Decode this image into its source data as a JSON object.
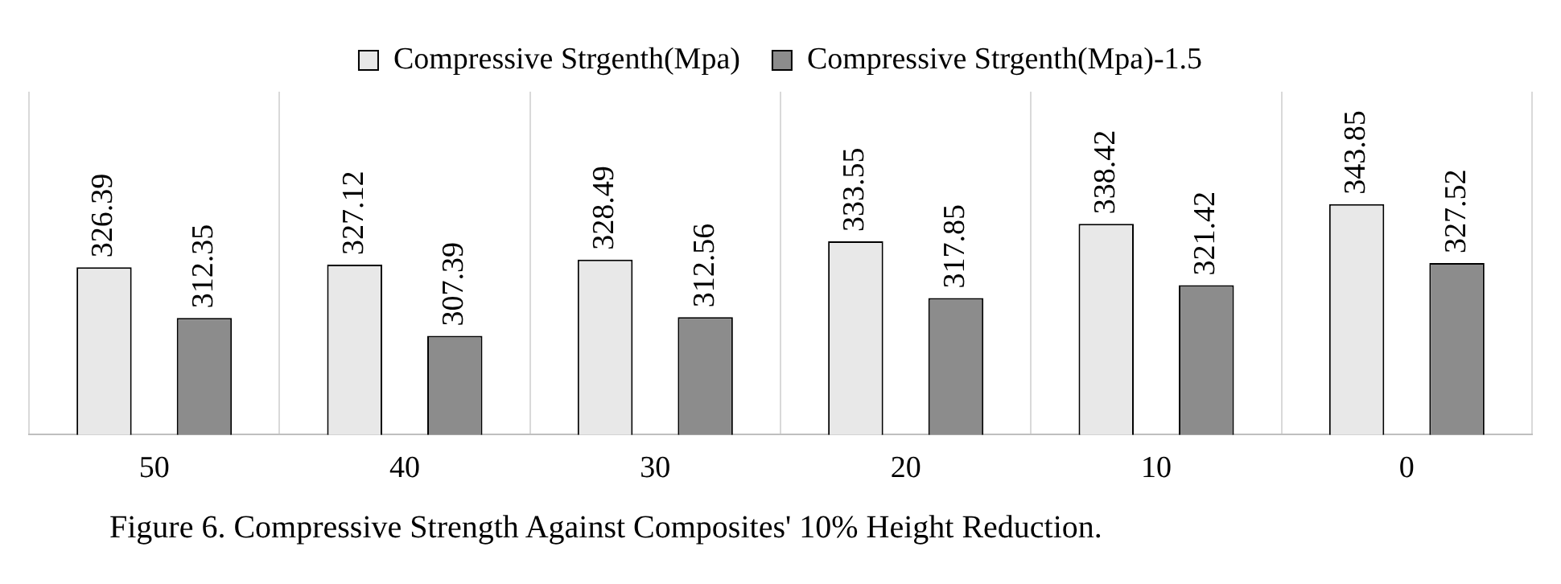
{
  "chart_data": {
    "type": "bar",
    "categories": [
      "50",
      "40",
      "30",
      "20",
      "10",
      "0"
    ],
    "series": [
      {
        "name": "Compressive Strgenth(Mpa)",
        "color": "#e8e8e8",
        "values": [
          326.39,
          327.12,
          328.49,
          333.55,
          338.42,
          343.85
        ]
      },
      {
        "name": "Compressive Strgenth(Mpa)-1.5",
        "color": "#8c8c8c",
        "values": [
          312.35,
          307.39,
          312.56,
          317.85,
          321.42,
          327.52
        ]
      }
    ],
    "ylim": [
      280,
      375
    ],
    "data_labels": true,
    "grid": "x",
    "legend": "top",
    "tick_labels": "x",
    "annotations": [
      "Figure 6. Compressive Strength Against Composites' 10% Height Reduction."
    ]
  }
}
